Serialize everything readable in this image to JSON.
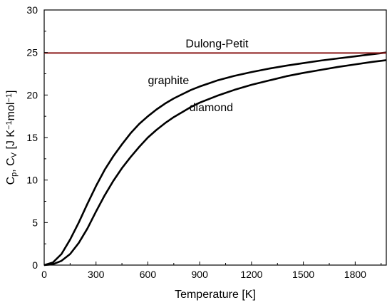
{
  "chart_data": {
    "type": "line",
    "xlabel": "Temperature [K]",
    "ylabel": {
      "parts": [
        {
          "t": "C",
          "s": ""
        },
        {
          "t": "p",
          "s": "sub"
        },
        {
          "t": ", C",
          "s": ""
        },
        {
          "t": "V",
          "s": "sub"
        },
        {
          "t": "  [J K",
          "s": ""
        },
        {
          "t": "−1",
          "s": "sup"
        },
        {
          "t": "mol",
          "s": ""
        },
        {
          "t": "−1",
          "s": "sup"
        },
        {
          "t": "]",
          "s": ""
        }
      ]
    },
    "xlim": [
      0,
      1980
    ],
    "ylim": [
      0,
      30
    ],
    "xticks": [
      0,
      300,
      600,
      900,
      1200,
      1500,
      1800
    ],
    "yticks": [
      0,
      5,
      10,
      15,
      20,
      25,
      30
    ],
    "grid": false,
    "series": [
      {
        "name": "graphite",
        "color": "#000000",
        "x": [
          0,
          50,
          100,
          150,
          200,
          250,
          300,
          350,
          400,
          450,
          500,
          550,
          600,
          650,
          700,
          750,
          800,
          850,
          900,
          950,
          1000,
          1100,
          1200,
          1300,
          1400,
          1500,
          1600,
          1700,
          1800,
          1900,
          1980
        ],
        "y": [
          0,
          0.3,
          1.3,
          3.0,
          5.0,
          7.2,
          9.3,
          11.2,
          12.8,
          14.2,
          15.5,
          16.6,
          17.5,
          18.3,
          19.0,
          19.6,
          20.1,
          20.6,
          21.0,
          21.35,
          21.7,
          22.25,
          22.7,
          23.1,
          23.45,
          23.75,
          24.05,
          24.3,
          24.55,
          24.8,
          25.0
        ]
      },
      {
        "name": "diamond",
        "color": "#000000",
        "x": [
          0,
          50,
          100,
          150,
          200,
          250,
          300,
          350,
          400,
          450,
          500,
          550,
          600,
          650,
          700,
          750,
          800,
          850,
          900,
          950,
          1000,
          1100,
          1200,
          1300,
          1400,
          1500,
          1600,
          1700,
          1800,
          1900,
          1980
        ],
        "y": [
          0,
          0.1,
          0.5,
          1.3,
          2.6,
          4.3,
          6.3,
          8.2,
          9.9,
          11.4,
          12.7,
          13.9,
          15.0,
          15.9,
          16.7,
          17.4,
          18.0,
          18.6,
          19.1,
          19.5,
          19.9,
          20.6,
          21.2,
          21.7,
          22.2,
          22.6,
          22.95,
          23.3,
          23.6,
          23.9,
          24.1
        ]
      },
      {
        "name": "Dulong-Petit",
        "color": "#8b1a1a",
        "x": [
          0,
          1980
        ],
        "y": [
          24.94,
          24.94
        ]
      }
    ],
    "annotations": [
      {
        "text": "Dulong-Petit",
        "x": 1000,
        "y": 25.6,
        "color": "#8b1a1a",
        "anchor": "middle"
      },
      {
        "text": "graphite",
        "x": 600,
        "y": 21.3,
        "color": "#000000",
        "anchor": "start"
      },
      {
        "text": "diamond",
        "x": 840,
        "y": 18.1,
        "color": "#000000",
        "anchor": "start"
      }
    ]
  }
}
